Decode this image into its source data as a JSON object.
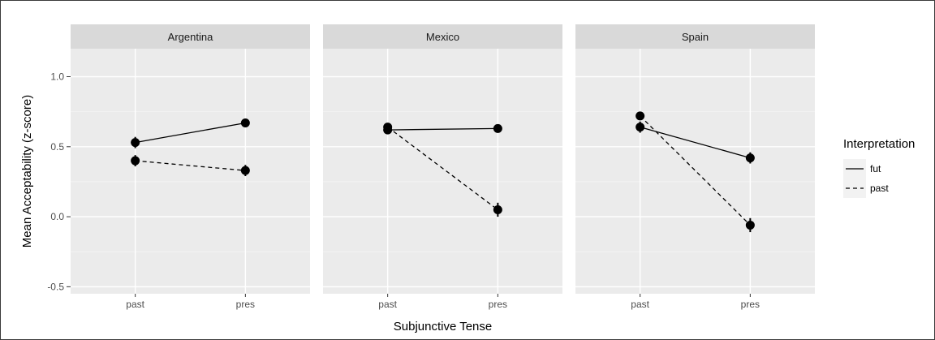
{
  "chart_data": {
    "type": "line",
    "facets": [
      "Argentina",
      "Mexico",
      "Spain"
    ],
    "categories": [
      "past",
      "pres"
    ],
    "xlabel": "Subjunctive Tense",
    "ylabel": "Mean Acceptability (z-score)",
    "ylim": [
      -0.55,
      1.2
    ],
    "yticks": [
      -0.5,
      0.0,
      0.5,
      1.0
    ],
    "ytick_labels": [
      "-0.5",
      "0.0",
      "0.5",
      "1.0"
    ],
    "grid": true,
    "legend": {
      "title": "Interpretation",
      "position": "right",
      "entries": [
        {
          "name": "fut",
          "linestyle": "solid"
        },
        {
          "name": "past",
          "linestyle": "dashed"
        }
      ]
    },
    "series": [
      {
        "name": "fut",
        "linestyle": "solid",
        "values": {
          "Argentina": [
            0.53,
            0.67
          ],
          "Mexico": [
            0.62,
            0.63
          ],
          "Spain": [
            0.64,
            0.42
          ]
        },
        "errors": {
          "Argentina": [
            0.04,
            0.03
          ],
          "Mexico": [
            0.03,
            0.03
          ],
          "Spain": [
            0.04,
            0.04
          ]
        }
      },
      {
        "name": "past",
        "linestyle": "dashed",
        "values": {
          "Argentina": [
            0.4,
            0.33
          ],
          "Mexico": [
            0.64,
            0.05
          ],
          "Spain": [
            0.72,
            -0.06
          ]
        },
        "errors": {
          "Argentina": [
            0.04,
            0.04
          ],
          "Mexico": [
            0.03,
            0.05
          ],
          "Spain": [
            0.03,
            0.05
          ]
        }
      }
    ]
  }
}
